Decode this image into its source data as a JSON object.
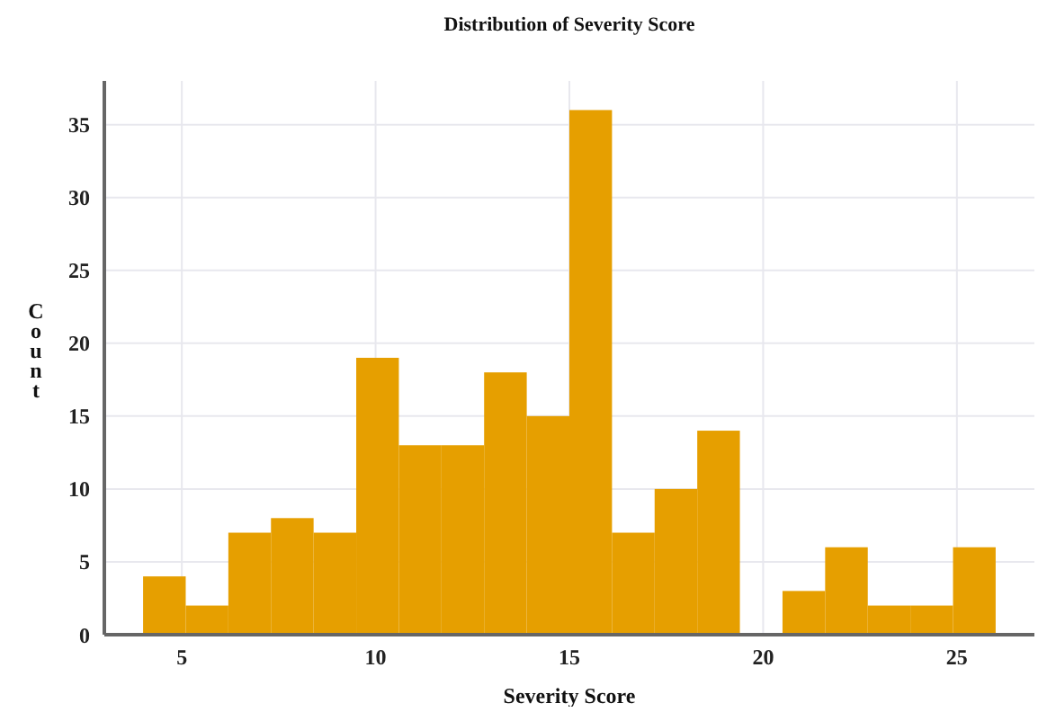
{
  "chart_data": {
    "type": "histogram",
    "title": "Distribution of Severity Score",
    "xlabel": "Severity Score",
    "ylabel": "Count",
    "bins": [
      4,
      5.1,
      6.2,
      7.3,
      8.4,
      9.5,
      10.6,
      11.7,
      12.8,
      13.9,
      15,
      16.1,
      17.2,
      18.3,
      19.4,
      20.5,
      21.6,
      22.7,
      23.8,
      24.9,
      26
    ],
    "values": [
      4,
      2,
      7,
      8,
      7,
      19,
      13,
      13,
      18,
      15,
      36,
      7,
      10,
      14,
      0,
      3,
      6,
      2,
      2,
      6
    ],
    "color": "#e69f00",
    "xlim": [
      3,
      27
    ],
    "xticks": [
      5,
      10,
      15,
      20,
      25
    ],
    "ylim": [
      0,
      38
    ],
    "yticks": [
      0,
      5,
      10,
      15,
      20,
      25,
      30,
      35
    ],
    "grid": true
  }
}
